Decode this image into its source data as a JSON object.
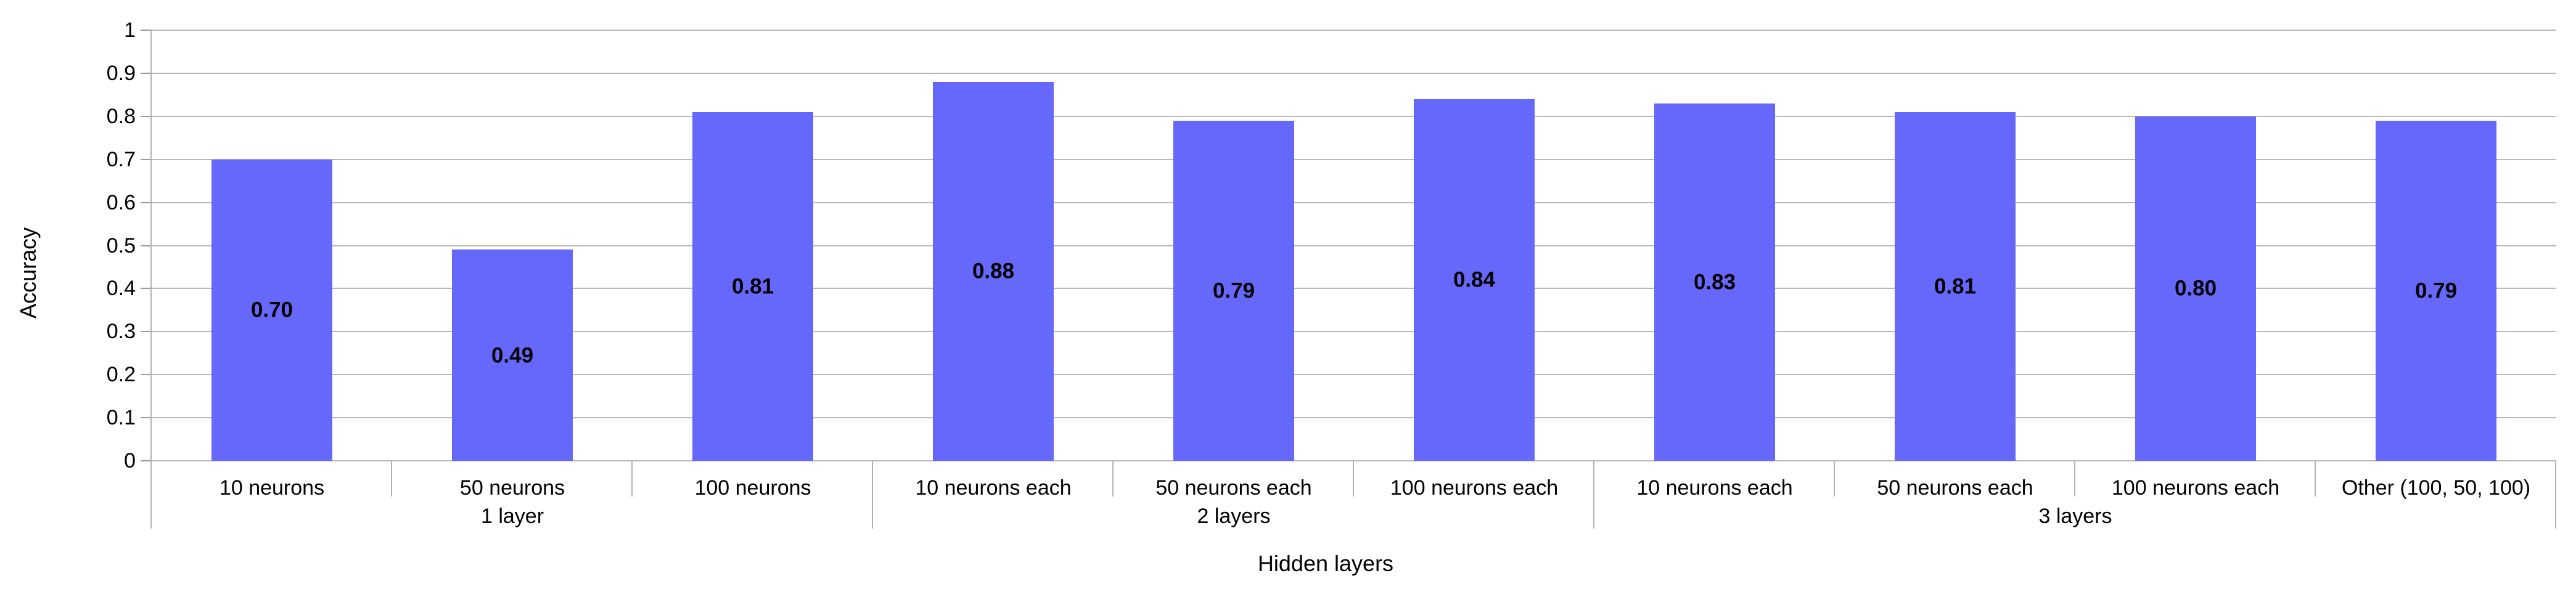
{
  "chart_data": {
    "type": "bar",
    "title": "",
    "xlabel": "Hidden layers",
    "ylabel": "Accuracy",
    "ylim": [
      0,
      1
    ],
    "ytick_step": 0.1,
    "ytick_labels": [
      "0",
      "0.1",
      "0.2",
      "0.3",
      "0.4",
      "0.5",
      "0.6",
      "0.7",
      "0.8",
      "0.9",
      "1"
    ],
    "grid": true,
    "legend": "none",
    "categories": [
      "10 neurons",
      "50 neurons",
      "100 neurons",
      "10 neurons each",
      "50 neurons each",
      "100 neurons each",
      "10 neurons each",
      "50 neurons each",
      "100 neurons each",
      "Other (100, 50, 100)"
    ],
    "values": [
      0.7,
      0.49,
      0.81,
      0.88,
      0.79,
      0.84,
      0.83,
      0.81,
      0.8,
      0.79
    ],
    "value_labels": [
      "0.70",
      "0.49",
      "0.81",
      "0.88",
      "0.79",
      "0.84",
      "0.83",
      "0.81",
      "0.80",
      "0.79"
    ],
    "value_label_position": "center-of-bar",
    "groups": [
      {
        "label": "1 layer",
        "span": 3
      },
      {
        "label": "2 layers",
        "span": 3
      },
      {
        "label": "3 layers",
        "span": 4
      }
    ],
    "colors": {
      "bar": "#6668FB",
      "gridline": "#b9b9b9",
      "axis": "#b3b3b3",
      "tick": "#9b9b9b",
      "text": "#000000"
    }
  }
}
